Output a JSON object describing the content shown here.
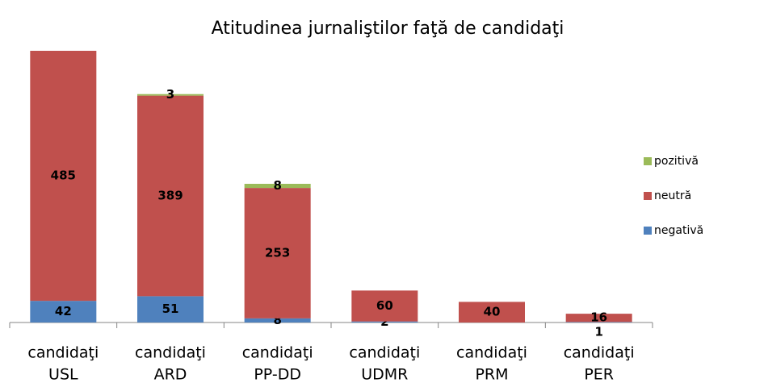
{
  "chart_data": {
    "type": "stacked_bar",
    "title": "Atitudinea jurnaliştilor faţă de candidaţi",
    "categories": [
      [
        "candidaţi",
        "USL"
      ],
      [
        "candidaţi",
        "ARD"
      ],
      [
        "candidaţi",
        "PP-DD"
      ],
      [
        "candidaţi",
        "UDMR"
      ],
      [
        "candidaţi",
        "PRM"
      ],
      [
        "candidaţi",
        "PER"
      ]
    ],
    "series": [
      {
        "name": "negativă",
        "color": "#4f81bd",
        "values": [
          42,
          51,
          8,
          2,
          null,
          1
        ]
      },
      {
        "name": "neutră",
        "color": "#c0504d",
        "values": [
          485,
          389,
          253,
          60,
          40,
          16
        ]
      },
      {
        "name": "pozitivă",
        "color": "#9bbb59",
        "values": [
          null,
          3,
          8,
          null,
          null,
          null
        ]
      }
    ],
    "legend": "right"
  }
}
